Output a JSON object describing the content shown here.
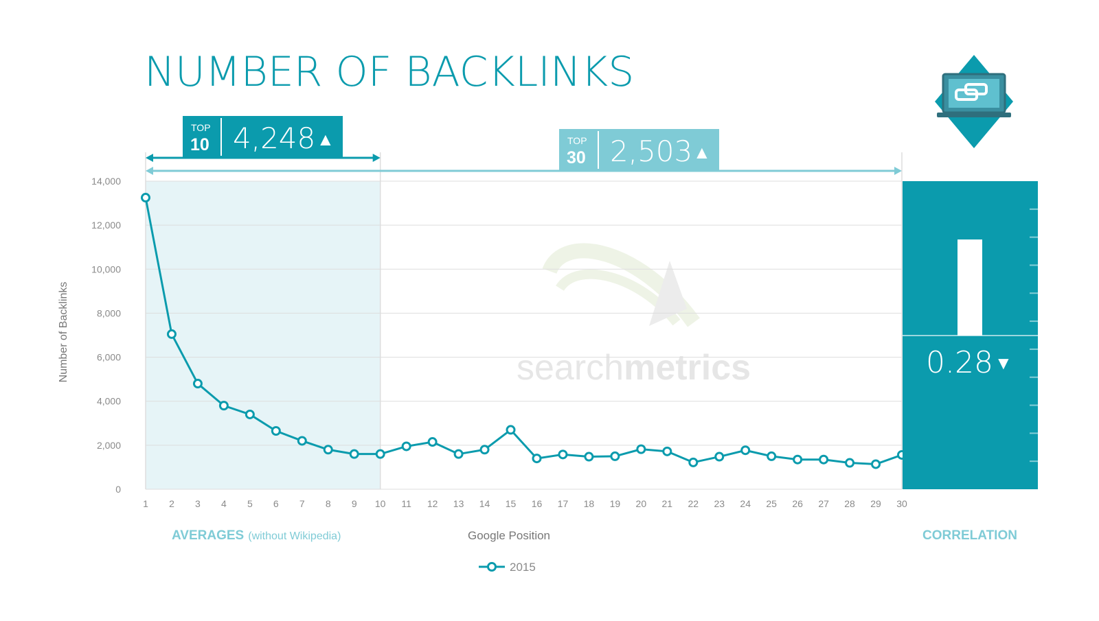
{
  "colors": {
    "primary": "#0b9bad",
    "light": "#7fcbd6",
    "shade": "#e6f4f7",
    "grid": "#dddddd",
    "watermark": "#e6e6e6"
  },
  "chart_data": {
    "type": "line",
    "title": "NUMBER OF BACKLINKS",
    "xlabel": "Google Position",
    "ylabel": "Number of Backlinks",
    "ylim": [
      0,
      14000
    ],
    "yticks": [
      0,
      2000,
      4000,
      6000,
      8000,
      10000,
      12000,
      14000
    ],
    "ytick_labels": [
      "0",
      "2,000",
      "4,000",
      "6,000",
      "8,000",
      "10,000",
      "12,000",
      "14,000"
    ],
    "x": [
      1,
      2,
      3,
      4,
      5,
      6,
      7,
      8,
      9,
      10,
      11,
      12,
      13,
      14,
      15,
      16,
      17,
      18,
      19,
      20,
      21,
      22,
      23,
      24,
      25,
      26,
      27,
      28,
      29,
      30
    ],
    "series": [
      {
        "name": "2015",
        "values": [
          13250,
          7050,
          4800,
          3800,
          3400,
          2650,
          2200,
          1800,
          1600,
          1600,
          1950,
          2150,
          1600,
          1800,
          2700,
          1400,
          1580,
          1480,
          1500,
          1820,
          1720,
          1220,
          1480,
          1770,
          1500,
          1350,
          1350,
          1200,
          1140,
          1560
        ]
      }
    ],
    "legend": {
      "position": "bottom-center"
    },
    "grid": true
  },
  "averages": {
    "label": "AVERAGES",
    "note": "(without Wikipedia)",
    "top10": {
      "top": "TOP",
      "number": "10",
      "value": "4,248",
      "trend": "▲",
      "range": [
        1,
        10
      ]
    },
    "top30": {
      "top": "TOP",
      "number": "30",
      "value": "2,503",
      "trend": "▲",
      "range": [
        1,
        30
      ]
    }
  },
  "correlation": {
    "label": "CORRELATION",
    "value": "0.28",
    "trend": "▼",
    "bar_value": 0.28
  },
  "logo": {
    "wordmark_light": "search",
    "wordmark_bold": "metrics"
  },
  "icon": {
    "name": "laptop-link-icon"
  }
}
